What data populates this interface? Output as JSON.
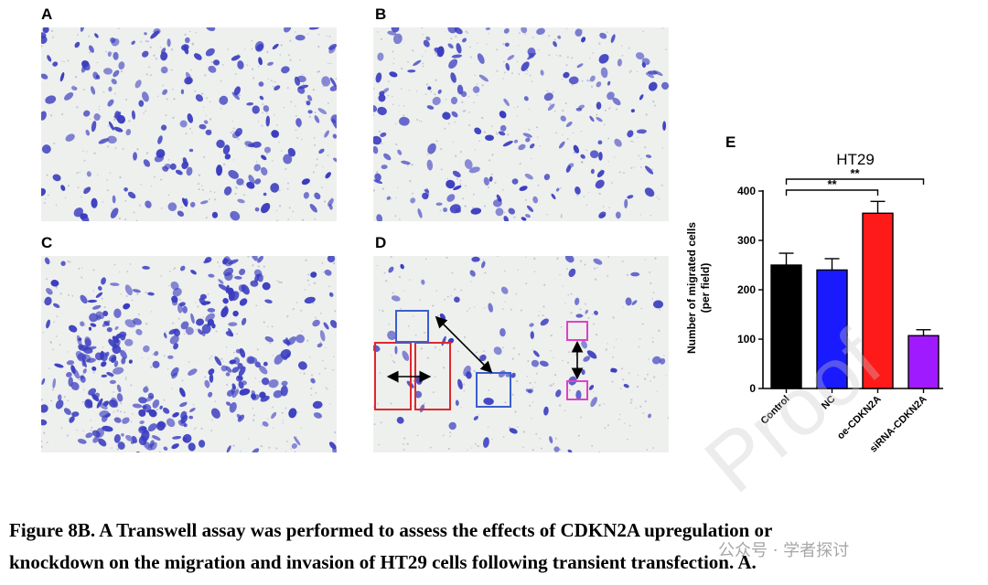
{
  "panels": {
    "a": "A",
    "b": "B",
    "c": "C",
    "d": "D",
    "e": "E"
  },
  "colors": {
    "cell": "#3a3dbf",
    "background": "#eef0ee",
    "red_box": "#e0282c",
    "blue_box": "#3a5fcf",
    "magenta_box": "#e040c8"
  },
  "chart_data": {
    "type": "bar",
    "title": "HT29",
    "ylabel": "Number of migrated cells\n(per field)",
    "ylabel_line1": "Number of migrated cells",
    "ylabel_line2": "(per field)",
    "categories": [
      "Control",
      "NC",
      "oe-CDKN2A",
      "siRNA-CDKN2A"
    ],
    "values": [
      250,
      240,
      355,
      107
    ],
    "errors": [
      24,
      23,
      24,
      12
    ],
    "colors": [
      "#000000",
      "#1a1aff",
      "#ff1a1a",
      "#a01aff"
    ],
    "ylim": [
      0,
      400
    ],
    "yticks": [
      "0",
      "100",
      "200",
      "300",
      "400"
    ],
    "significance": [
      {
        "from": "Control",
        "to": "oe-CDKN2A",
        "label": "**"
      },
      {
        "from": "Control",
        "to": "siRNA-CDKN2A",
        "label": "**"
      }
    ]
  },
  "caption": {
    "line1": "Figure 8B. A Transwell assay was performed to assess the effects of CDKN2A upregulation or",
    "line2": "knockdown on the migration and invasion of HT29 cells following transient transfection. A."
  },
  "watermark": {
    "proof": "Proof",
    "wechat": "公众号 · 学者探讨"
  }
}
